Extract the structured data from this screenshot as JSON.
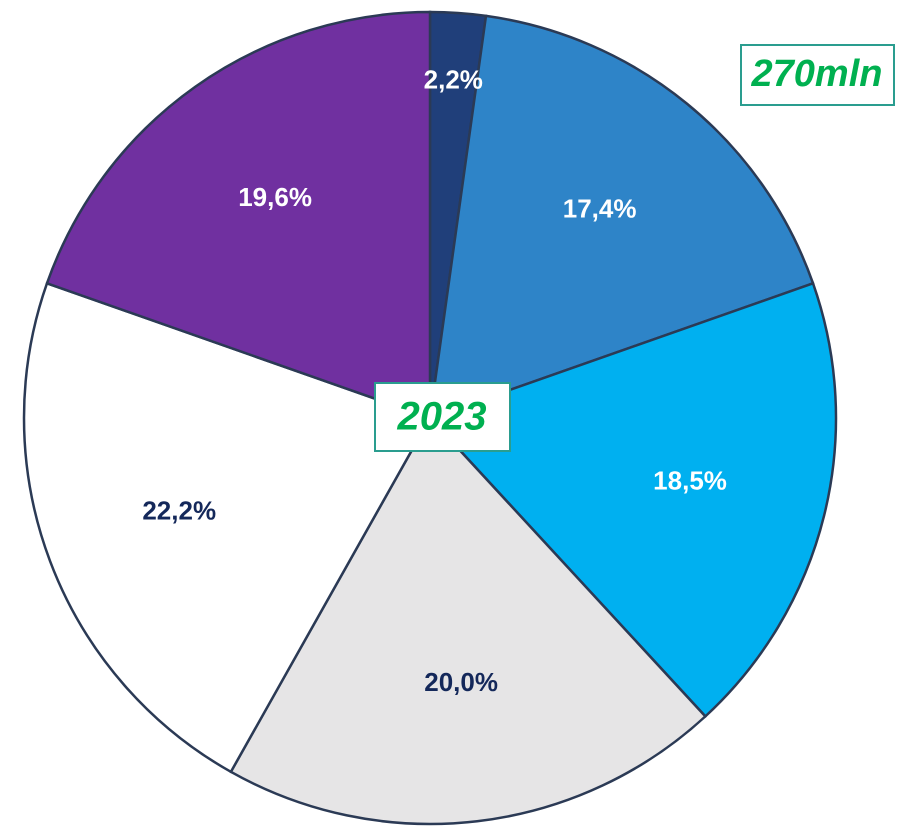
{
  "chart_data": {
    "type": "pie",
    "values": [
      2.2,
      17.4,
      18.5,
      20.0,
      22.2,
      19.6
    ],
    "value_labels": [
      "2,2%",
      "17,4%",
      "18,5%",
      "20,0%",
      "22,2%",
      "19,6%"
    ],
    "colors": [
      "#203f7a",
      "#2e84c8",
      "#00b0f0",
      "#e6e5e6",
      "#ffffff",
      "#7030a0"
    ],
    "annotations": [
      "270mln",
      "2023"
    ]
  }
}
